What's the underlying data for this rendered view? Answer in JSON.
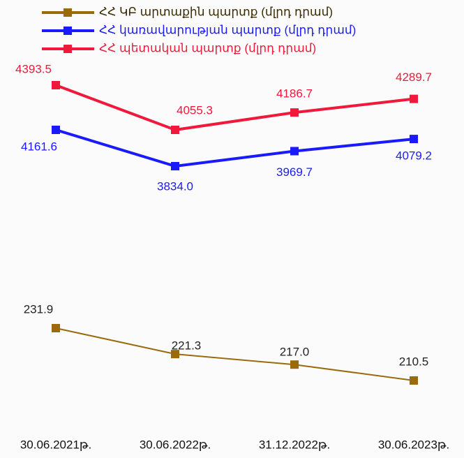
{
  "chart_data": {
    "type": "line",
    "categories": [
      "30.06.2021թ.",
      "30.06.2022թ.",
      "31.12.2022թ.",
      "30.06.2023թ."
    ],
    "series": [
      {
        "name": "ՀՀ ԿԲ արտաքին պարտք (մլրդ դրամ)",
        "color": "#9a6a0b",
        "values": [
          231.9,
          221.3,
          217.0,
          210.5
        ],
        "value_labels": [
          "231.9",
          "221.3",
          "217.0",
          "210.5"
        ]
      },
      {
        "name": "ՀՀ կառավարության պարտք (մլրդ դրամ)",
        "color": "#1a1aff",
        "values": [
          4161.6,
          3834.0,
          3969.7,
          4079.2
        ],
        "value_labels": [
          "4161.6",
          "3834.0",
          "3969.7",
          "4079.2"
        ]
      },
      {
        "name": "ՀՀ պետական պարտք (մլրդ դրամ)",
        "color": "#f0193c",
        "values": [
          4393.5,
          4055.3,
          4186.7,
          4289.7
        ],
        "value_labels": [
          "4393.5",
          "4055.3",
          "4186.7",
          "4289.7"
        ]
      }
    ],
    "legend": "top"
  }
}
